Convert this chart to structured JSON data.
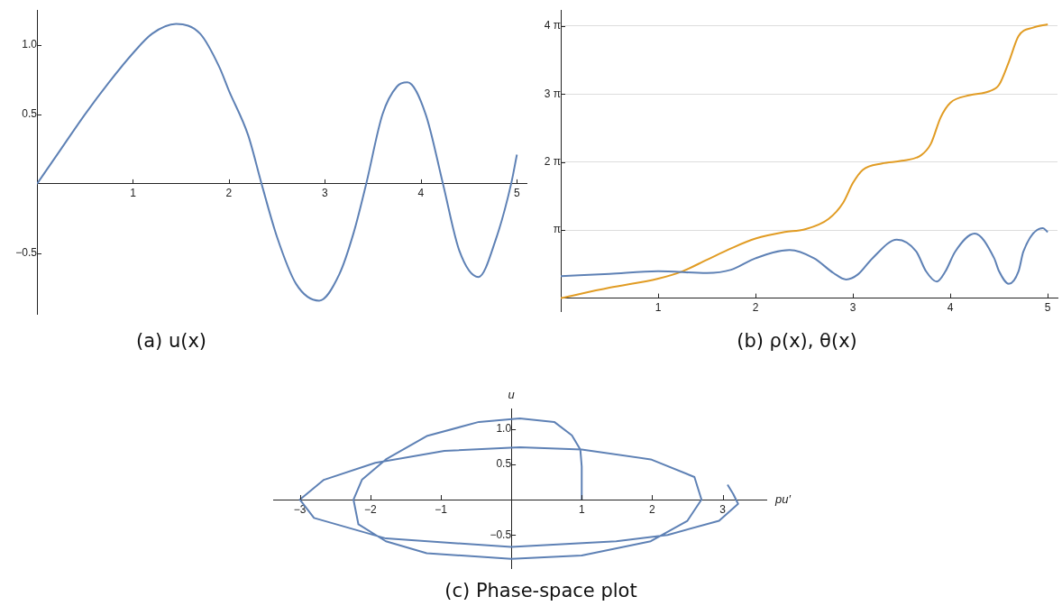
{
  "chart_data": [
    {
      "type": "line",
      "title": "(a) u(x)",
      "x": [
        0,
        0.25,
        0.5,
        0.75,
        1,
        1.2,
        1.45,
        1.7,
        1.9,
        2,
        2.2,
        2.34,
        2.5,
        2.7,
        2.94,
        3.15,
        3.3,
        3.43,
        3.6,
        3.75,
        3.86,
        4.05,
        4.23,
        4.4,
        4.6,
        4.78,
        4.94,
        5
      ],
      "series": [
        {
          "color": "#5e81b5",
          "values": [
            0,
            0.25,
            0.5,
            0.73,
            0.94,
            1.08,
            1.15,
            1.08,
            0.84,
            0.67,
            0.35,
            0,
            -0.38,
            -0.72,
            -0.84,
            -0.65,
            -0.35,
            0,
            0.5,
            0.7,
            0.73,
            0.5,
            0,
            -0.48,
            -0.67,
            -0.4,
            0,
            0.21
          ]
        }
      ],
      "xlim": [
        0,
        5.1
      ],
      "ylim": [
        -0.94,
        1.25
      ],
      "xticks": [
        1,
        2,
        3,
        4,
        5
      ],
      "yticks": [
        {
          "value": -0.5,
          "label": "−0.5"
        },
        {
          "value": 0.5,
          "label": "0.5"
        },
        {
          "value": 1,
          "label": "1.0"
        }
      ],
      "grid": false,
      "legend": false
    },
    {
      "type": "line",
      "title": "(b) ρ(x), θ(x)",
      "series": [
        {
          "color": "#5e81b5",
          "x": [
            0,
            0.5,
            1,
            1.5,
            1.75,
            2,
            2.35,
            2.6,
            2.8,
            2.93,
            3.05,
            3.2,
            3.45,
            3.65,
            3.75,
            3.86,
            3.95,
            4.05,
            4.25,
            4.45,
            4.5,
            4.6,
            4.7,
            4.75,
            4.95,
            5
          ],
          "values": [
            1.01,
            1.12,
            1.24,
            1.16,
            1.31,
            1.84,
            2.22,
            1.84,
            1.16,
            0.86,
            1.09,
            1.84,
            2.7,
            2.15,
            1.24,
            0.76,
            1.24,
            2.15,
            2.98,
            1.84,
            1.24,
            0.66,
            1.24,
            2.15,
            3.23,
            3.05
          ]
        },
        {
          "color": "#e19c24",
          "x": [
            0,
            0.5,
            1,
            1.25,
            1.5,
            1.75,
            2,
            2.3,
            2.5,
            2.75,
            2.9,
            3,
            3.1,
            3.3,
            3.5,
            3.7,
            3.8,
            3.9,
            4,
            4.2,
            4.4,
            4.5,
            4.6,
            4.7,
            4.85,
            5
          ],
          "values": [
            0,
            0.48,
            0.9,
            1.24,
            1.77,
            2.3,
            2.75,
            3.05,
            3.17,
            3.66,
            4.41,
            5.32,
            5.92,
            6.22,
            6.34,
            6.6,
            7.13,
            8.34,
            9.02,
            9.37,
            9.55,
            9.85,
            10.9,
            12.1,
            12.49,
            12.64
          ]
        }
      ],
      "xlim": [
        0,
        5.1
      ],
      "ylim": [
        -0.6,
        13.3
      ],
      "xticks": [
        1,
        2,
        3,
        4,
        5
      ],
      "yticks": [
        {
          "value": 3.1416,
          "label": "π"
        },
        {
          "value": 6.2832,
          "label": "2 π"
        },
        {
          "value": 9.4248,
          "label": "3 π"
        },
        {
          "value": 12.5664,
          "label": "4 π"
        }
      ],
      "grid": "y",
      "legend": false
    },
    {
      "type": "line",
      "title": "(c) Phase-space plot",
      "xlabel": "pu′",
      "ylabel": "u",
      "series": [
        {
          "color": "#5e81b5",
          "x": [
            1,
            1,
            0.98,
            0.86,
            0.61,
            0.12,
            -0.46,
            -1.2,
            -1.78,
            -2.12,
            -2.24,
            -2.17,
            -1.78,
            -1.2,
            0,
            1,
            1.98,
            2.5,
            2.7,
            2.6,
            1.98,
            1,
            0.12,
            -0.95,
            -1.93,
            -2.66,
            -3,
            -2.8,
            -1.78,
            0,
            1.49,
            2.22,
            2.95,
            3.22,
            3.15,
            3.07
          ],
          "values": [
            0,
            0.47,
            0.71,
            0.91,
            1.1,
            1.15,
            1.1,
            0.9,
            0.57,
            0.28,
            0,
            -0.35,
            -0.59,
            -0.76,
            -0.84,
            -0.79,
            -0.59,
            -0.3,
            0,
            0.32,
            0.57,
            0.71,
            0.74,
            0.69,
            0.52,
            0.28,
            0,
            -0.26,
            -0.55,
            -0.67,
            -0.59,
            -0.5,
            -0.3,
            -0.06,
            0.08,
            0.21
          ]
        }
      ],
      "xlim": [
        -3.38,
        3.62
      ],
      "ylim": [
        -0.97,
        1.29
      ],
      "xticks": [
        {
          "value": -3,
          "label": "−3"
        },
        {
          "value": -2,
          "label": "−2"
        },
        {
          "value": -1,
          "label": "−1"
        },
        1,
        2,
        3
      ],
      "yticks": [
        {
          "value": -0.5,
          "label": "−0.5"
        },
        {
          "value": 0.5,
          "label": "0.5"
        },
        {
          "value": 1,
          "label": "1.0"
        }
      ],
      "grid": false,
      "legend": false
    }
  ]
}
